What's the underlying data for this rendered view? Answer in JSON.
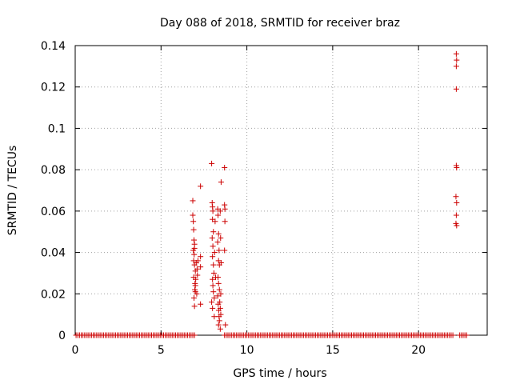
{
  "chart_data": {
    "type": "scatter",
    "title": "Day 088 of 2018, SRMTID for receiver braz",
    "xlabel": "GPS time / hours",
    "ylabel": "SRMTID / TECUs",
    "xlim": [
      0,
      24
    ],
    "ylim": [
      0,
      0.14
    ],
    "x_ticks": [
      0,
      5,
      10,
      15,
      20
    ],
    "x_tick_labels": [
      "0",
      "5",
      "10",
      "15",
      "20"
    ],
    "y_ticks": [
      0,
      0.02,
      0.04,
      0.06,
      0.08,
      0.1,
      0.12,
      0.14
    ],
    "y_tick_labels": [
      "0",
      "0.02",
      "0.04",
      "0.06",
      "0.08",
      "0.1",
      "0.12",
      "0.14"
    ],
    "grid": true,
    "marker": "+",
    "colors": {
      "series": "#cc0000",
      "grid": "#a0a0a0",
      "axis": "#000000"
    },
    "series": [
      {
        "name": "SRMTID",
        "zero_ranges": [
          [
            0.05,
            7.0
          ],
          [
            8.7,
            22.05
          ],
          [
            22.4,
            22.8
          ]
        ],
        "points": [
          [
            6.85,
            0.065
          ],
          [
            6.85,
            0.058
          ],
          [
            6.88,
            0.055
          ],
          [
            6.9,
            0.051
          ],
          [
            6.92,
            0.046
          ],
          [
            6.95,
            0.044
          ],
          [
            6.88,
            0.041
          ],
          [
            6.9,
            0.036
          ],
          [
            6.95,
            0.034
          ],
          [
            7.0,
            0.031
          ],
          [
            6.9,
            0.028
          ],
          [
            6.98,
            0.025
          ],
          [
            7.0,
            0.021
          ],
          [
            6.92,
            0.018
          ],
          [
            6.95,
            0.014
          ],
          [
            7.05,
            0.035
          ],
          [
            7.1,
            0.032
          ],
          [
            7.15,
            0.036
          ],
          [
            7.02,
            0.027
          ],
          [
            7.08,
            0.02
          ],
          [
            6.95,
            0.042
          ],
          [
            6.93,
            0.039
          ],
          [
            7.12,
            0.029
          ],
          [
            7.0,
            0.024
          ],
          [
            6.97,
            0.022
          ],
          [
            7.3,
            0.072
          ],
          [
            7.3,
            0.038
          ],
          [
            7.3,
            0.033
          ],
          [
            7.3,
            0.015
          ],
          [
            7.95,
            0.083
          ],
          [
            7.98,
            0.064
          ],
          [
            8.0,
            0.062
          ],
          [
            8.02,
            0.06
          ],
          [
            8.0,
            0.056
          ],
          [
            8.05,
            0.05
          ],
          [
            7.98,
            0.047
          ],
          [
            8.02,
            0.043
          ],
          [
            8.0,
            0.038
          ],
          [
            8.05,
            0.034
          ],
          [
            8.08,
            0.03
          ],
          [
            8.0,
            0.027
          ],
          [
            8.02,
            0.024
          ],
          [
            8.05,
            0.021
          ],
          [
            7.95,
            0.016
          ],
          [
            8.0,
            0.013
          ],
          [
            8.1,
            0.009
          ],
          [
            8.15,
            0.055
          ],
          [
            8.12,
            0.04
          ],
          [
            8.18,
            0.028
          ],
          [
            8.1,
            0.018
          ],
          [
            8.3,
            0.061
          ],
          [
            8.32,
            0.058
          ],
          [
            8.35,
            0.049
          ],
          [
            8.3,
            0.045
          ],
          [
            8.38,
            0.041
          ],
          [
            8.35,
            0.036
          ],
          [
            8.4,
            0.034
          ],
          [
            8.32,
            0.028
          ],
          [
            8.35,
            0.025
          ],
          [
            8.4,
            0.022
          ],
          [
            8.3,
            0.019
          ],
          [
            8.33,
            0.015
          ],
          [
            8.36,
            0.012
          ],
          [
            8.38,
            0.009
          ],
          [
            8.4,
            0.007
          ],
          [
            8.35,
            0.005
          ],
          [
            8.45,
            0.003
          ],
          [
            8.42,
            0.016
          ],
          [
            8.45,
            0.013
          ],
          [
            8.48,
            0.01
          ],
          [
            8.47,
            0.047
          ],
          [
            8.5,
            0.074
          ],
          [
            8.45,
            0.06
          ],
          [
            8.5,
            0.035
          ],
          [
            8.48,
            0.02
          ],
          [
            8.7,
            0.081
          ],
          [
            8.7,
            0.063
          ],
          [
            8.72,
            0.061
          ],
          [
            8.72,
            0.055
          ],
          [
            8.7,
            0.041
          ],
          [
            8.75,
            0.005
          ],
          [
            22.2,
            0.136
          ],
          [
            22.22,
            0.133
          ],
          [
            22.2,
            0.13
          ],
          [
            22.2,
            0.119
          ],
          [
            22.2,
            0.082
          ],
          [
            22.22,
            0.081
          ],
          [
            22.18,
            0.067
          ],
          [
            22.22,
            0.064
          ],
          [
            22.2,
            0.058
          ],
          [
            22.18,
            0.054
          ],
          [
            22.22,
            0.053
          ]
        ]
      }
    ]
  }
}
